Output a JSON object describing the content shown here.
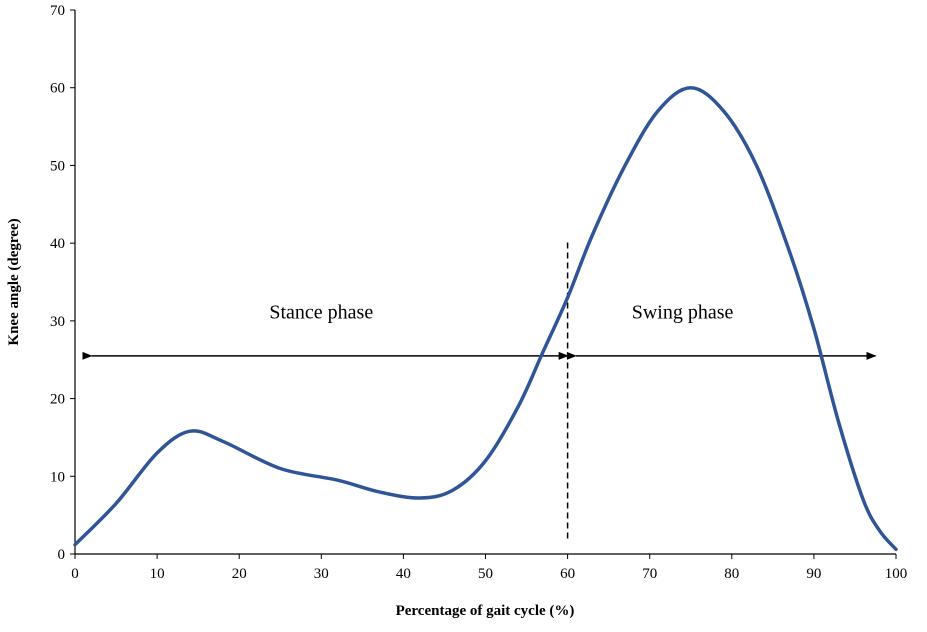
{
  "chart_data": {
    "type": "line",
    "title": "",
    "xlabel": "Percentage of gait cycle (%)",
    "ylabel": "Knee angle (degree)",
    "xlim": [
      0,
      100
    ],
    "ylim": [
      0,
      70
    ],
    "x_ticks": [
      0,
      10,
      20,
      30,
      40,
      50,
      60,
      70,
      80,
      90,
      100
    ],
    "y_ticks": [
      0,
      10,
      20,
      30,
      40,
      50,
      60,
      70
    ],
    "grid": false,
    "series": [
      {
        "name": "Knee angle",
        "color": "#2f5597",
        "x": [
          0,
          5,
          10,
          14,
          18,
          25,
          32,
          37,
          42,
          46,
          50,
          54,
          57,
          60,
          63,
          67,
          71,
          75,
          79,
          83,
          87,
          90,
          93,
          96,
          98,
          100
        ],
        "y": [
          1.2,
          6.5,
          13,
          15.8,
          14.5,
          11,
          9.5,
          8,
          7.2,
          8.2,
          12,
          19,
          26,
          33,
          41,
          50,
          57,
          60,
          57,
          50,
          39,
          29,
          17,
          7,
          3,
          0.6
        ]
      }
    ],
    "annotations": {
      "stance_label": "Stance phase",
      "swing_label": "Swing phase",
      "divider_x": 60,
      "divider_y_range": [
        2,
        40.5
      ],
      "arrow_y": 25.5,
      "stance_arrow_x": [
        2,
        60
      ],
      "swing_arrow_x": [
        61,
        97.5
      ],
      "stance_label_pos": [
        30,
        30.3
      ],
      "swing_label_pos": [
        74,
        30.3
      ]
    }
  }
}
